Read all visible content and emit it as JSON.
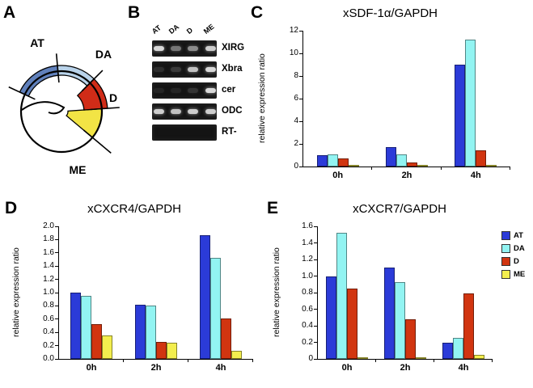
{
  "panels": {
    "a": "A",
    "b": "B",
    "c": "C",
    "d": "D",
    "e": "E"
  },
  "colors": {
    "AT": "#2b3bd8",
    "DA": "#92f4f2",
    "D": "#d13510",
    "ME": "#f3ee4e"
  },
  "diagram": {
    "regions": [
      {
        "id": "AT",
        "label": "AT",
        "color": "#6080bb"
      },
      {
        "id": "DA",
        "label": "DA",
        "color": "#b9d3ea"
      },
      {
        "id": "D",
        "label": "D",
        "color": "#d02c18"
      },
      {
        "id": "ME",
        "label": "ME",
        "color": "#f2e445"
      }
    ]
  },
  "gel": {
    "lanes": [
      "AT",
      "DA",
      "D",
      "ME"
    ],
    "rows": [
      {
        "label": "XIRG",
        "bands": [
          0.9,
          0.45,
          0.55,
          0.85
        ]
      },
      {
        "label": "Xbra",
        "bands": [
          0.12,
          0.18,
          0.8,
          0.9
        ]
      },
      {
        "label": "cer",
        "bands": [
          0.08,
          0.08,
          0.15,
          0.9
        ]
      },
      {
        "label": "ODC",
        "bands": [
          0.85,
          0.8,
          0.85,
          0.85
        ]
      },
      {
        "label": "RT-",
        "bands": [
          0,
          0,
          0,
          0
        ]
      }
    ]
  },
  "chart_data": [
    {
      "type": "bar",
      "panel": "C",
      "title": "xSDF-1α/GAPDH",
      "xlabel": "",
      "ylabel": "relative expression ratio",
      "categories": [
        "0h",
        "2h",
        "4h"
      ],
      "series": [
        {
          "name": "AT",
          "values": [
            1.0,
            1.75,
            9.0
          ]
        },
        {
          "name": "DA",
          "values": [
            1.05,
            1.1,
            11.2
          ]
        },
        {
          "name": "D",
          "values": [
            0.7,
            0.35,
            1.45
          ]
        },
        {
          "name": "ME",
          "values": [
            0.05,
            0.05,
            0.05
          ]
        }
      ],
      "ylim": [
        0,
        12
      ],
      "yticks": [
        "0",
        "2",
        "4",
        "6",
        "8",
        "10",
        "12"
      ],
      "grid": false,
      "legend": false
    },
    {
      "type": "bar",
      "panel": "D",
      "title": "xCXCR4/GAPDH",
      "xlabel": "",
      "ylabel": "relative expression ratio",
      "categories": [
        "0h",
        "2h",
        "4h"
      ],
      "series": [
        {
          "name": "AT",
          "values": [
            1.0,
            0.82,
            1.87
          ]
        },
        {
          "name": "DA",
          "values": [
            0.95,
            0.8,
            1.52
          ]
        },
        {
          "name": "D",
          "values": [
            0.52,
            0.26,
            0.61
          ]
        },
        {
          "name": "ME",
          "values": [
            0.35,
            0.25,
            0.12
          ]
        }
      ],
      "ylim": [
        0,
        2.0
      ],
      "yticks": [
        "0.0",
        "0.2",
        "0.4",
        "0.6",
        "0.8",
        "1.0",
        "1.2",
        "1.4",
        "1.6",
        "1.8",
        "2.0"
      ],
      "grid": false,
      "legend": false
    },
    {
      "type": "bar",
      "panel": "E",
      "title": "xCXCR7/GAPDH",
      "xlabel": "",
      "ylabel": "relative expression ratio",
      "categories": [
        "0h",
        "2h",
        "4h"
      ],
      "series": [
        {
          "name": "AT",
          "values": [
            1.0,
            1.1,
            0.2
          ]
        },
        {
          "name": "DA",
          "values": [
            1.52,
            0.93,
            0.25
          ]
        },
        {
          "name": "D",
          "values": [
            0.85,
            0.48,
            0.79
          ]
        },
        {
          "name": "ME",
          "values": [
            0.02,
            0.02,
            0.05
          ]
        }
      ],
      "ylim": [
        0,
        1.6
      ],
      "yticks": [
        "0",
        "0.2",
        "0.4",
        "0.6",
        "0.8",
        "1.0",
        "1.2",
        "1.4",
        "1.6"
      ],
      "grid": false,
      "legend": true,
      "legend_position": "right"
    }
  ]
}
